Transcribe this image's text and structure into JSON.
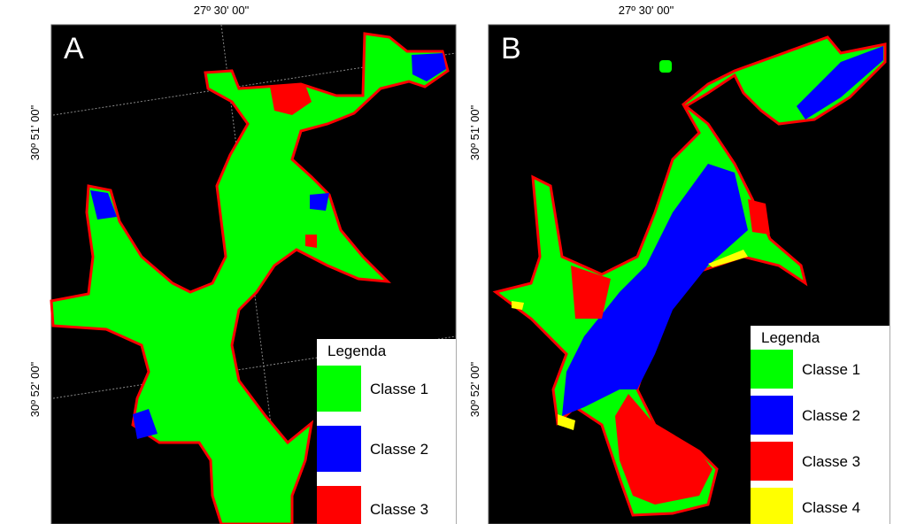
{
  "panels": [
    {
      "label": "A",
      "top_coord": "27º 30' 00\"",
      "left_coords": [
        "30º 51' 00\"",
        "30º 52' 00\""
      ],
      "legend": {
        "title": "Legenda",
        "items": [
          {
            "label": "Classe 1",
            "color": "#00ff00"
          },
          {
            "label": "Classe 2",
            "color": "#0000ff"
          },
          {
            "label": "Classe 3",
            "color": "#ff0000"
          }
        ]
      }
    },
    {
      "label": "B",
      "top_coord": "27º 30' 00\"",
      "left_coords": [
        "30º 51' 00\"",
        "30º 52' 00\""
      ],
      "legend": {
        "title": "Legenda",
        "items": [
          {
            "label": "Classe 1",
            "color": "#00ff00"
          },
          {
            "label": "Classe 2",
            "color": "#0000ff"
          },
          {
            "label": "Classe 3",
            "color": "#ff0000"
          },
          {
            "label": "Classe 4",
            "color": "#ffff00"
          }
        ]
      }
    }
  ]
}
